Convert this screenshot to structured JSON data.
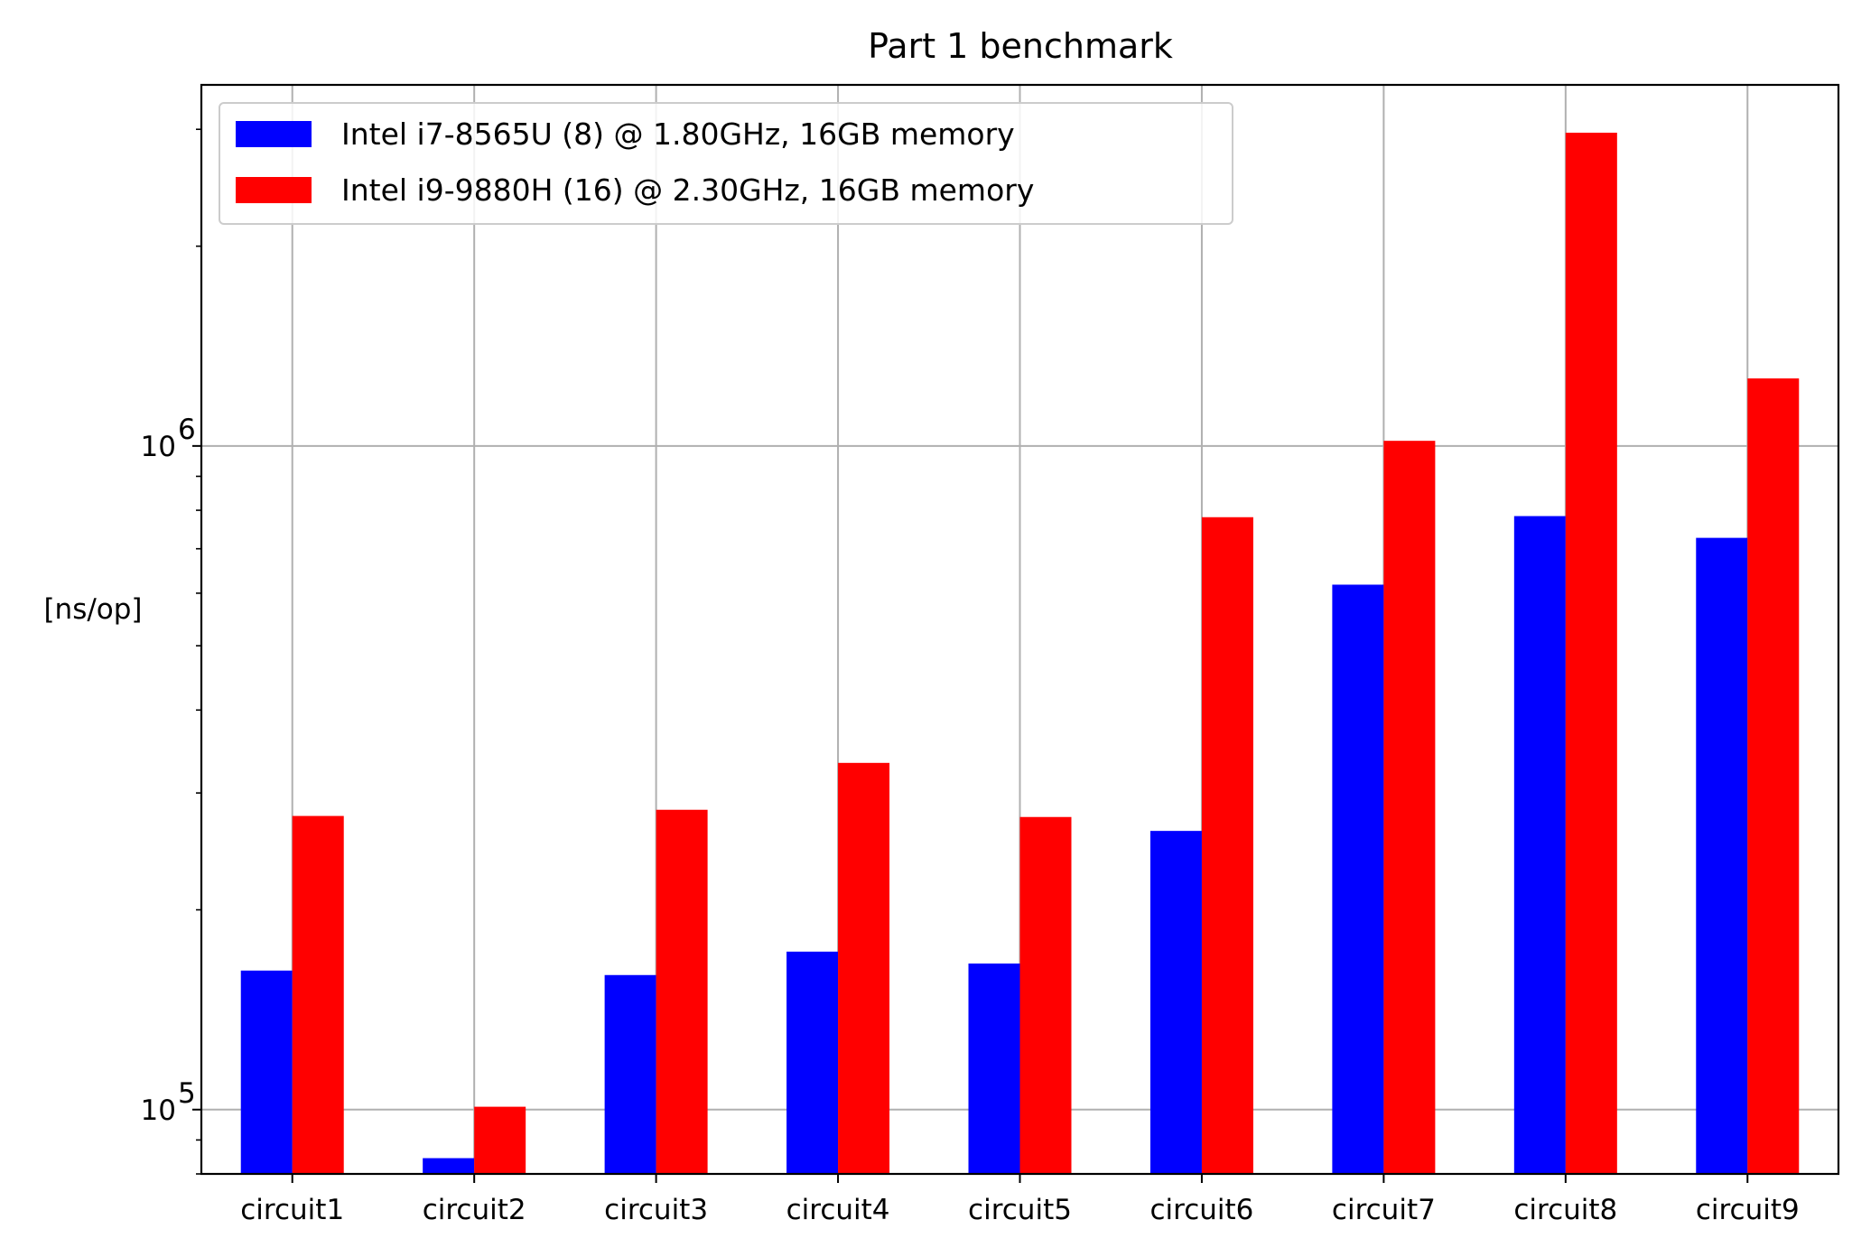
{
  "chart_data": {
    "type": "bar",
    "title": "Part 1 benchmark",
    "xlabel": "",
    "ylabel": "[ns/op]",
    "yscale": "log",
    "ylim": [
      80000,
      3500000
    ],
    "yticks": [
      {
        "value": 100000,
        "base": "10",
        "exp": "5"
      },
      {
        "value": 1000000,
        "base": "10",
        "exp": "6"
      }
    ],
    "grid": true,
    "legend_position": "upper-left",
    "categories": [
      "circuit1",
      "circuit2",
      "circuit3",
      "circuit4",
      "circuit5",
      "circuit6",
      "circuit7",
      "circuit8",
      "circuit9"
    ],
    "series": [
      {
        "name": "Intel i7-8565U (8) @ 1.80GHz, 16GB memory",
        "color": "#0000ff",
        "values": [
          162000,
          84500,
          159500,
          173000,
          166000,
          263000,
          618000,
          784000,
          727000
        ]
      },
      {
        "name": "Intel i9-9880H (16) @ 2.30GHz, 16GB memory",
        "color": "#ff0000",
        "values": [
          277000,
          101000,
          283000,
          333000,
          276000,
          781000,
          1018000,
          2965000,
          1264000
        ]
      }
    ]
  }
}
